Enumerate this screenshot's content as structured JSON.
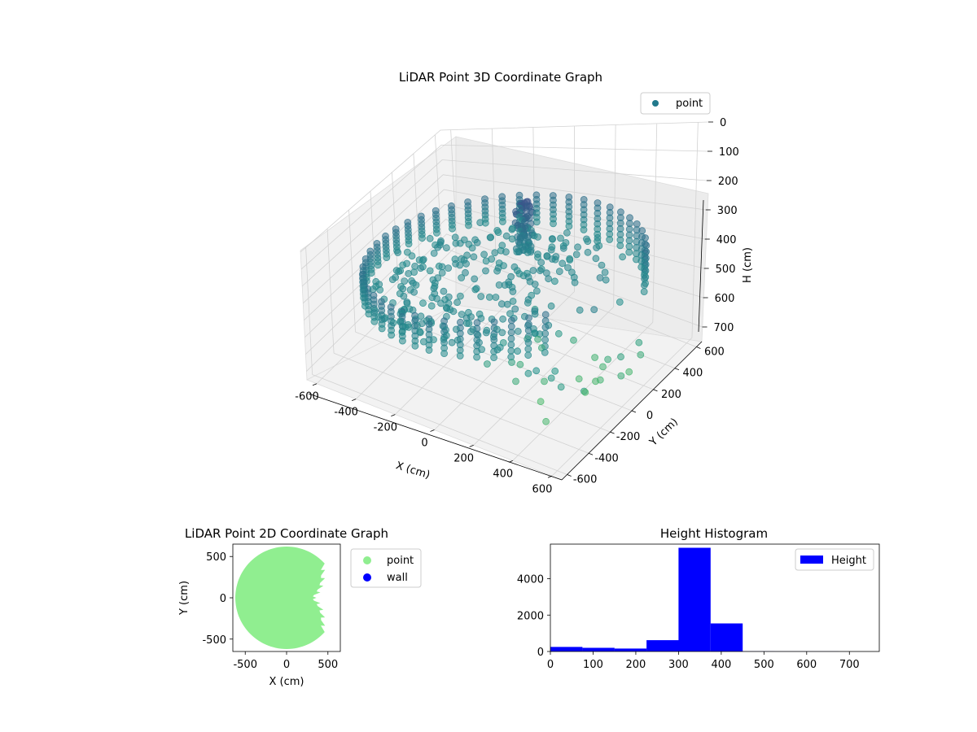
{
  "chart_data": [
    {
      "type": "scatter",
      "projection": "3d",
      "title": "LiDAR Point 3D Coordinate Graph",
      "xlabel": "X (cm)",
      "ylabel": "Y (cm)",
      "zlabel": "H (cm)",
      "xlim": [
        -650,
        650
      ],
      "ylim": [
        -650,
        650
      ],
      "zlim": [
        750,
        0
      ],
      "x_ticks": [
        "-600",
        "-400",
        "-200",
        "0",
        "200",
        "400",
        "600"
      ],
      "y_ticks": [
        "-600",
        "-400",
        "-200",
        "0",
        "200",
        "400",
        "600"
      ],
      "z_ticks": [
        "0",
        "100",
        "200",
        "300",
        "400",
        "500",
        "600",
        "700"
      ],
      "z_inverted": true,
      "colormap": "viridis",
      "legend": [
        {
          "label": "point",
          "color": "#21798c"
        }
      ],
      "legend_position": "top-right",
      "grid": true,
      "structure": {
        "shape": "cylindrical wall ring",
        "radius_approx": 620,
        "height_range": [
          310,
          460
        ],
        "floor_height": 430,
        "open_side": "positive X",
        "object_cluster": {
          "x": -40,
          "y": 260,
          "h_range": [
            170,
            400
          ]
        }
      }
    },
    {
      "type": "scatter",
      "title": "LiDAR Point 2D Coordinate Graph",
      "xlabel": "X (cm)",
      "ylabel": "Y (cm)",
      "xlim": [
        -650,
        650
      ],
      "ylim": [
        -650,
        650
      ],
      "x_ticks": [
        "-500",
        "0",
        "500"
      ],
      "y_ticks": [
        "500",
        "0",
        "-500"
      ],
      "series": [
        {
          "name": "point",
          "color": "#90ee90"
        },
        {
          "name": "wall",
          "color": "#0000ff"
        }
      ],
      "legend_position": "outside right",
      "description_region": "filled disk radius ~620 centered at origin, opening on +X side"
    },
    {
      "type": "bar",
      "subtype": "histogram",
      "title": "Height Histogram",
      "xlim": [
        0,
        770
      ],
      "ylim": [
        0,
        5900
      ],
      "x_ticks": [
        "0",
        "100",
        "200",
        "300",
        "400",
        "500",
        "600",
        "700"
      ],
      "y_ticks": [
        "0",
        "2000",
        "4000"
      ],
      "bin_edges": [
        0,
        75,
        150,
        225,
        300,
        375,
        450,
        525,
        600,
        675,
        750
      ],
      "values": [
        250,
        200,
        160,
        620,
        5700,
        1540,
        10,
        5,
        3,
        2
      ],
      "series": [
        {
          "name": "Height",
          "color": "#0000ff"
        }
      ],
      "legend_position": "top-right",
      "grid": false
    }
  ]
}
